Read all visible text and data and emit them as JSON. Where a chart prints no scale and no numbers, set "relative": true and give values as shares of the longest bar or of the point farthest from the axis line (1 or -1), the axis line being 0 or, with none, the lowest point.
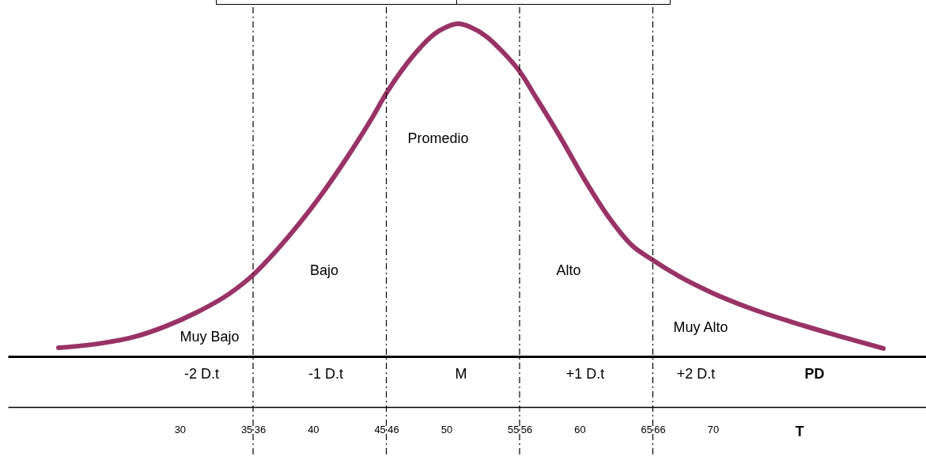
{
  "chart_data": {
    "type": "line",
    "relative": true,
    "xlabel": "T",
    "xlim": [
      17.1,
      86
    ],
    "xticks": [
      30,
      35,
      36,
      40,
      45,
      46,
      50,
      55,
      56,
      60,
      65,
      66,
      70
    ],
    "series": [
      {
        "color": "#993366",
        "x": [
          20.9,
          24.2,
          26.6,
          28.9,
          31.3,
          33.7,
          35.5,
          37.2,
          39.0,
          40.8,
          42.6,
          44.4,
          45.5,
          46.7,
          47.9,
          49.1,
          50.0,
          50.9,
          51.8,
          53.0,
          54.2,
          55.5,
          56.8,
          58.6,
          60.4,
          62.2,
          63.9,
          65.4,
          67.5,
          69.9,
          72.8,
          75.8,
          78.8,
          82.8
        ],
        "values": [
          0.026,
          0.04,
          0.059,
          0.09,
          0.133,
          0.188,
          0.245,
          0.316,
          0.401,
          0.496,
          0.601,
          0.715,
          0.791,
          0.862,
          0.922,
          0.969,
          0.99,
          1,
          0.99,
          0.962,
          0.917,
          0.857,
          0.774,
          0.656,
          0.53,
          0.418,
          0.335,
          0.292,
          0.24,
          0.192,
          0.145,
          0.105,
          0.069,
          0.024
        ]
      }
    ],
    "ref_lines": [
      {
        "axis": "x",
        "value": 35.5,
        "color": "#000000",
        "line_style": "dashed"
      },
      {
        "axis": "x",
        "value": 45.5,
        "color": "#000000",
        "line_style": "dashed"
      },
      {
        "axis": "x",
        "value": 55.5,
        "color": "#000000",
        "line_style": "dashed"
      },
      {
        "axis": "x",
        "value": 65.5,
        "color": "#000000",
        "line_style": "dashed"
      }
    ],
    "annotations": [
      "Muy Bajo",
      "Bajo",
      "Promedio",
      "Alto",
      "Muy Alto",
      "-2 D.t",
      "-1 D.t",
      "M",
      "+1 D.t",
      "+2 D.t",
      "PD"
    ],
    "marker": "none",
    "line_style": "solid"
  }
}
